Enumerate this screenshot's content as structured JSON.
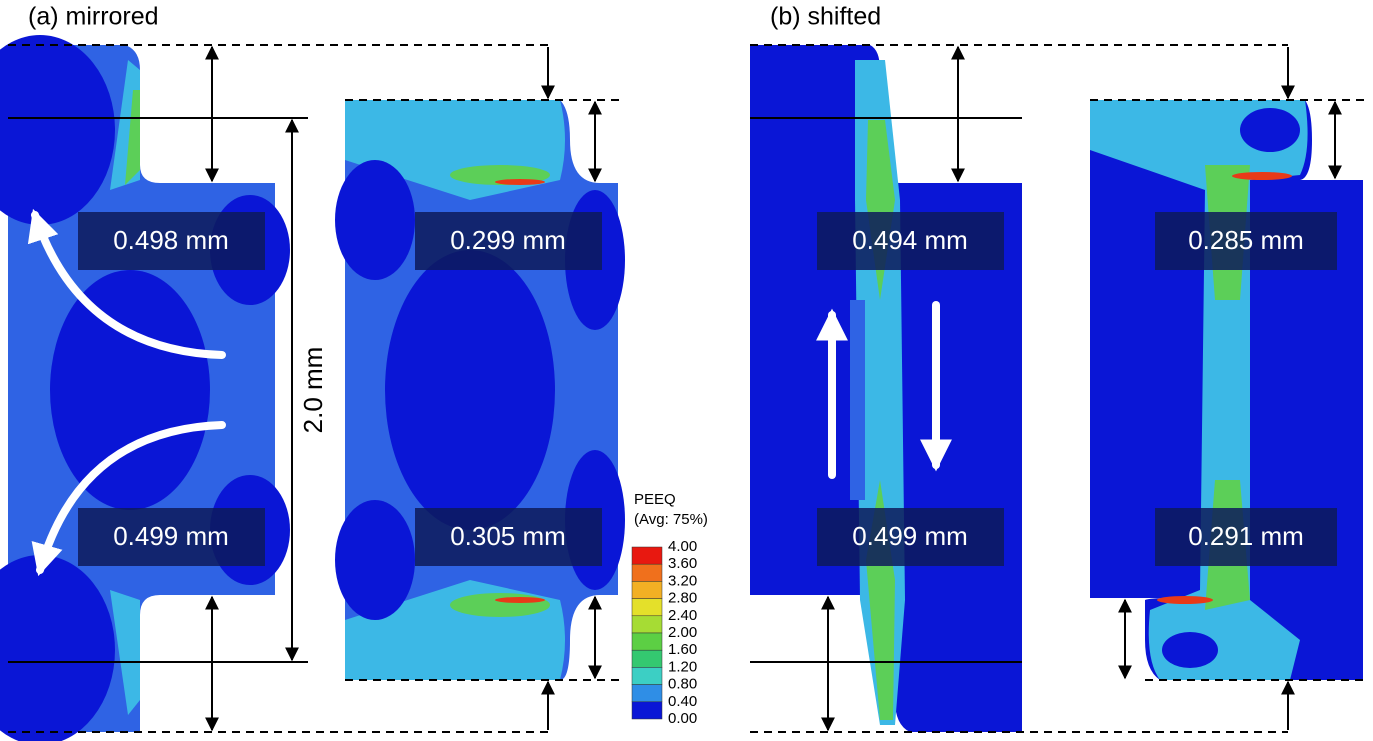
{
  "panels": [
    {
      "title": "(a) mirrored",
      "height": "2.0 mm",
      "measurements": [
        "0.498 mm",
        "0.499 mm",
        "0.299 mm",
        "0.305 mm"
      ]
    },
    {
      "title": "(b) shifted",
      "measurements": [
        "0.494 mm",
        "0.499 mm",
        "0.285 mm",
        "0.291 mm"
      ]
    }
  ],
  "legend": {
    "title": "PEEQ",
    "subtitle": "(Avg: 75%)",
    "levels": [
      "4.00",
      "3.60",
      "3.20",
      "2.80",
      "2.40",
      "2.00",
      "1.60",
      "1.20",
      "0.80",
      "0.40",
      "0.00"
    ],
    "colors": [
      "#e81810",
      "#f0701c",
      "#f2b024",
      "#e4e02a",
      "#a6dc34",
      "#5ccf44",
      "#34c870",
      "#3ccfc4",
      "#2f8ee6",
      "#0a16d6"
    ]
  }
}
